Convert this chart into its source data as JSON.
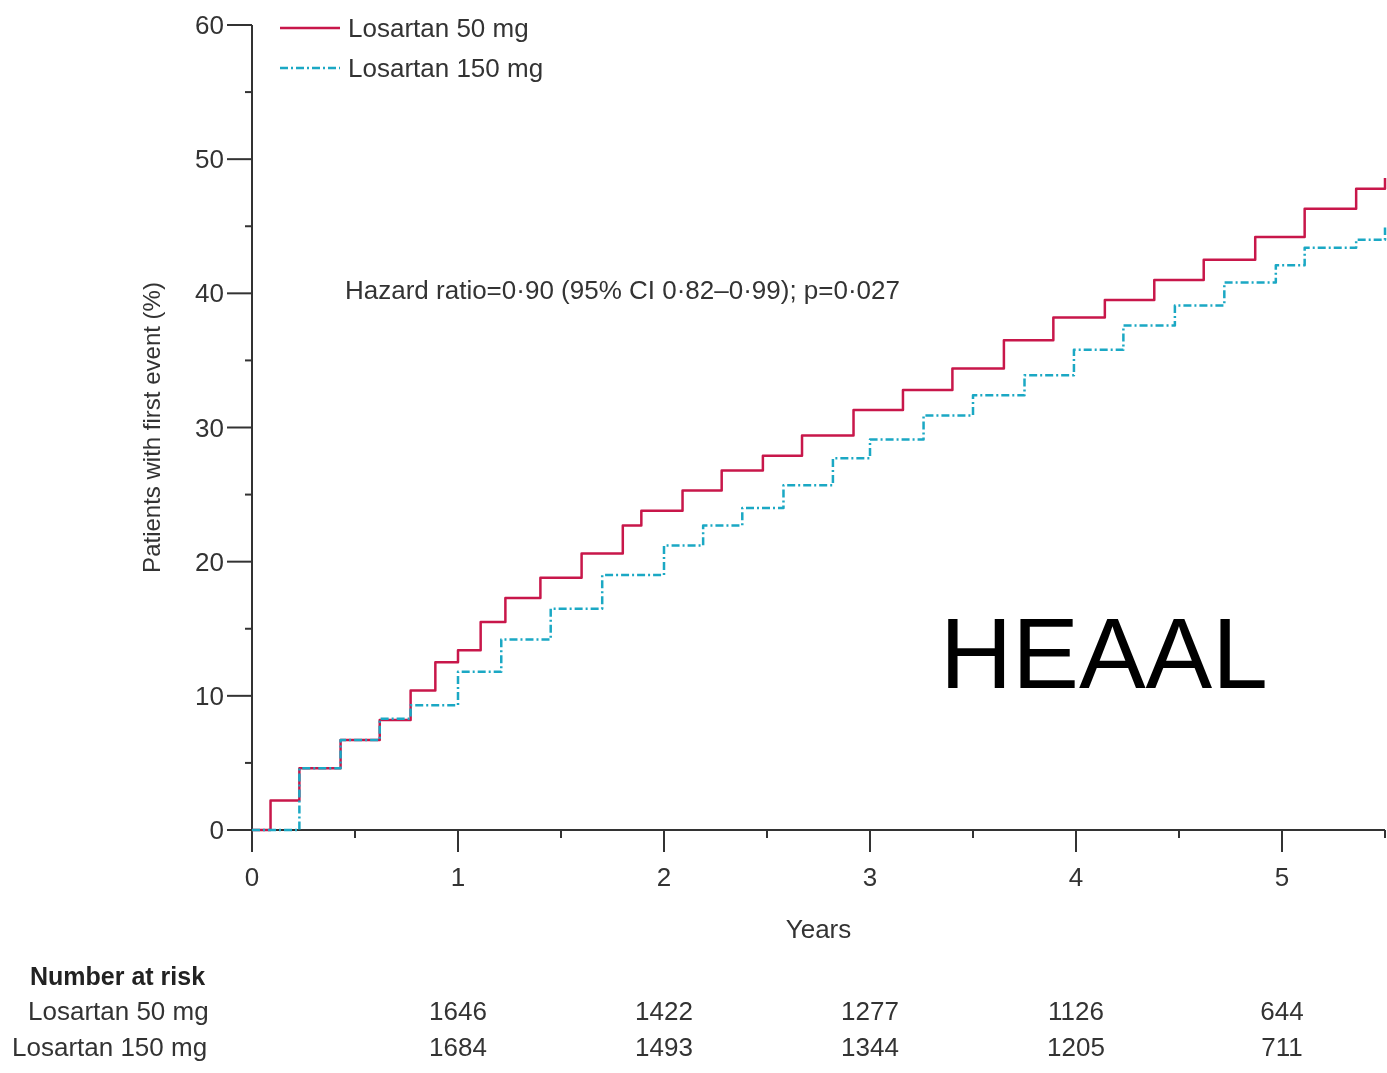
{
  "chart_data": {
    "type": "step",
    "xlabel": "Years",
    "ylabel": "Patients with first event (%)",
    "xlim": [
      0,
      5.5
    ],
    "ylim": [
      0,
      60
    ],
    "xticks": [
      0,
      {
        "value": 0.5,
        "label": null
      },
      1,
      {
        "value": 1.5,
        "label": null
      },
      2,
      {
        "value": 2.5,
        "label": null
      },
      3,
      {
        "value": 3.5,
        "label": null
      },
      4,
      {
        "value": 4.5,
        "label": null
      },
      5,
      {
        "value": 5.5,
        "label": null
      }
    ],
    "yticks": [
      0,
      {
        "value": 5,
        "label": null
      },
      10,
      {
        "value": 15,
        "label": null
      },
      20,
      {
        "value": 25,
        "label": null
      },
      30,
      {
        "value": 35,
        "label": null
      },
      40,
      {
        "value": 45,
        "label": null
      },
      50,
      {
        "value": 55,
        "label": null
      },
      60
    ],
    "grid": false,
    "legend": "top left",
    "marker": "none",
    "series": [
      {
        "name": "Losartan 50 mg",
        "color": "#c8174a",
        "line_style": "solid",
        "x": [
          0,
          0.09,
          0.23,
          0.43,
          0.62,
          0.77,
          0.89,
          1.0,
          1.11,
          1.23,
          1.4,
          1.6,
          1.8,
          1.89,
          2.09,
          2.28,
          2.48,
          2.67,
          2.92,
          3.16,
          3.4,
          3.65,
          3.89,
          4.14,
          4.38,
          4.62,
          4.87,
          5.11,
          5.36,
          5.5
        ],
        "values": [
          0,
          2.2,
          4.6,
          6.7,
          8.2,
          10.4,
          12.5,
          13.4,
          15.5,
          17.3,
          18.8,
          20.6,
          22.7,
          23.8,
          25.3,
          26.8,
          27.9,
          29.4,
          31.3,
          32.8,
          34.4,
          36.5,
          38.2,
          39.5,
          41.0,
          42.5,
          44.2,
          46.3,
          47.8,
          48.6
        ]
      },
      {
        "name": "Losartan 150 mg",
        "color": "#1ba8c4",
        "line_style": "dashdot",
        "x": [
          0,
          0.23,
          0.43,
          0.62,
          0.77,
          1.0,
          1.21,
          1.45,
          1.7,
          2.0,
          2.19,
          2.38,
          2.58,
          2.82,
          3.0,
          3.26,
          3.5,
          3.75,
          3.99,
          4.23,
          4.48,
          4.72,
          4.97,
          5.11,
          5.36,
          5.5
        ],
        "values": [
          0,
          4.6,
          6.7,
          8.3,
          9.3,
          11.8,
          14.2,
          16.5,
          19.0,
          21.2,
          22.7,
          24.0,
          25.7,
          27.7,
          29.1,
          30.9,
          32.4,
          33.9,
          35.8,
          37.6,
          39.1,
          40.8,
          42.1,
          43.4,
          44.0,
          44.9
        ]
      }
    ],
    "annotations": [
      "Hazard ratio=0·90 (95% CI 0·82–0·99); p=0·027",
      "HEAAL",
      "Number at risk",
      "Losartan 50 mg",
      "1646",
      "1422",
      "1277",
      "1126",
      "644",
      "Losartan 150 mg",
      "1684",
      "1493",
      "1344",
      "1205",
      "711"
    ]
  }
}
